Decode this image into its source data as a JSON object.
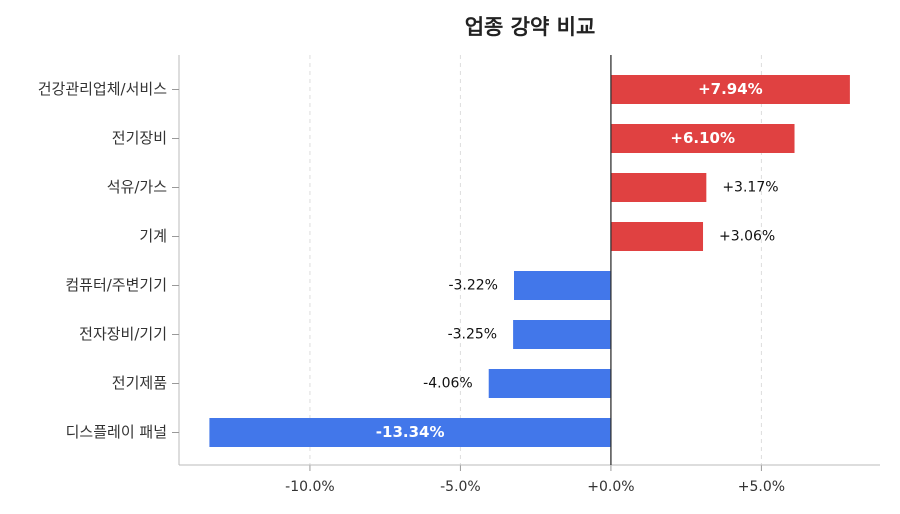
{
  "chart_data": {
    "type": "barh",
    "title": "업종 강약 비교",
    "categories": [
      "건강관리업체/서비스",
      "전기장비",
      "석유/가스",
      "기계",
      "컴퓨터/주변기기",
      "전자장비/기기",
      "전기제품",
      "디스플레이 패널"
    ],
    "values": [
      7.94,
      6.1,
      3.17,
      3.06,
      -3.22,
      -3.25,
      -4.06,
      -13.34
    ],
    "value_labels": [
      "+7.94%",
      "+6.10%",
      "+3.17%",
      "+3.06%",
      "-3.22%",
      "-3.25%",
      "-4.06%",
      "-13.34%"
    ],
    "positive_color": "#e04141",
    "negative_color": "#4277ea",
    "xlim": [
      -14.35,
      8.94
    ],
    "xticks": [
      {
        "value": -10,
        "label": "-10.0%"
      },
      {
        "value": -5,
        "label": "-5.0%"
      },
      {
        "value": 0,
        "label": "+0.0%"
      },
      {
        "value": 5,
        "label": "+5.0%"
      }
    ],
    "grid": true
  }
}
